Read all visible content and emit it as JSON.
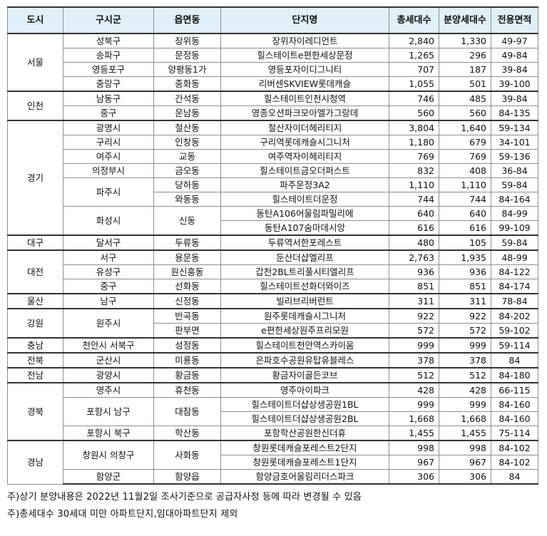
{
  "table": {
    "headers": [
      "도시",
      "구시군",
      "읍면동",
      "단지명",
      "총세대수",
      "분양세대수",
      "전용면적"
    ],
    "groups": [
      {
        "city": "서울",
        "rows": [
          [
            "성북구",
            "장위동",
            "장위자이레디언트",
            "2,840",
            "1,330",
            "49-97"
          ],
          [
            "송파구",
            "문정동",
            "힐스테이트e편한세상문정",
            "1,265",
            "296",
            "49-84"
          ],
          [
            "영등포구",
            "양평동1가",
            "영등포자이디그니티",
            "707",
            "187",
            "39-84"
          ],
          [
            "중랑구",
            "중화동",
            "리버센SKVIEW롯데캐슬",
            "1,055",
            "501",
            "39-100"
          ]
        ]
      },
      {
        "city": "인천",
        "rows": [
          [
            "남동구",
            "간석동",
            "힐스테이트인천시청역",
            "746",
            "485",
            "39-84"
          ],
          [
            "중구",
            "운남동",
            "영종오션파크모아엘가그랑데",
            "560",
            "560",
            "84-135"
          ]
        ]
      },
      {
        "city": "경기",
        "rows": [
          [
            "광명시",
            "철산동",
            "철산자이더헤리티지",
            "3,804",
            "1,640",
            "59-134"
          ],
          [
            "구리시",
            "인창동",
            "구리역롯데캐슬시그니처",
            "1,180",
            "679",
            "34-101"
          ],
          [
            "여주시",
            "교동",
            "여주역자이헤리티지",
            "769",
            "769",
            "59-136"
          ],
          [
            "의정부시",
            "금오동",
            "힐스테이트금오더퍼스트",
            "832",
            "408",
            "36-84"
          ],
          [
            "파주시",
            "당하동",
            "파주운정3A2",
            "1,110",
            "1,110",
            "59-84"
          ],
          [
            "",
            "와동동",
            "힐스테이트더운정",
            "744",
            "744",
            "84-164"
          ],
          [
            "화성시",
            "신동",
            "동탄A106어울림파밀리에",
            "640",
            "640",
            "84-99"
          ],
          [
            "",
            "",
            "동탄A107숨마데시앙",
            "616",
            "616",
            "99-109"
          ]
        ]
      },
      {
        "city": "대구",
        "rows": [
          [
            "달서구",
            "두류동",
            "두류역서한포레스트",
            "480",
            "105",
            "59-84"
          ]
        ]
      },
      {
        "city": "대전",
        "rows": [
          [
            "서구",
            "용문동",
            "둔산더샵엘리프",
            "2,763",
            "1,935",
            "48-99"
          ],
          [
            "유성구",
            "원신흥동",
            "갑천2BL트리풀시티엘리프",
            "936",
            "936",
            "84-122"
          ],
          [
            "중구",
            "선화동",
            "힐스테이트선화더와이즈",
            "851",
            "851",
            "84-174"
          ]
        ]
      },
      {
        "city": "울산",
        "rows": [
          [
            "남구",
            "신정동",
            "빌리브리버런트",
            "311",
            "311",
            "78-84"
          ]
        ]
      },
      {
        "city": "강원",
        "rows": [
          [
            "원주시",
            "반곡동",
            "원주롯데캐슬시그니처",
            "922",
            "922",
            "84-202"
          ],
          [
            "",
            "판부면",
            "e편한세상원주프리모원",
            "572",
            "572",
            "59-102"
          ]
        ]
      },
      {
        "city": "충남",
        "rows": [
          [
            "천안시 서북구",
            "성정동",
            "힐스테이트천안역스카이움",
            "999",
            "999",
            "59-114"
          ]
        ]
      },
      {
        "city": "전북",
        "rows": [
          [
            "군산시",
            "미룡동",
            "은파호수공원유탑유블레스",
            "378",
            "378",
            "84"
          ]
        ]
      },
      {
        "city": "전남",
        "rows": [
          [
            "광양시",
            "황금동",
            "황금자이골든코브",
            "512",
            "512",
            "84-180"
          ]
        ]
      },
      {
        "city": "경북",
        "rows": [
          [
            "영주시",
            "휴천동",
            "영주아이파크",
            "428",
            "428",
            "66-115"
          ],
          [
            "포항시 남구",
            "대잠동",
            "힐스테이트더샵상생공원1BL",
            "999",
            "999",
            "84-160"
          ],
          [
            "",
            "",
            "힐스테이트더샵상생공원2BL",
            "1,668",
            "1,668",
            "84-160"
          ],
          [
            "포항시 북구",
            "학산동",
            "포항학산공원한신더휴",
            "1,455",
            "1,455",
            "75-114"
          ]
        ]
      },
      {
        "city": "경남",
        "rows": [
          [
            "창원시 의창구",
            "사화동",
            "창원롯데캐슬포레스트2단지",
            "998",
            "998",
            "84-102"
          ],
          [
            "",
            "",
            "창원롯데캐슬포레스트1단지",
            "967",
            "967",
            "84-102"
          ],
          [
            "함양군",
            "함양읍",
            "함양금호어울림리더스파크",
            "306",
            "306",
            "84"
          ]
        ]
      }
    ]
  },
  "notes": [
    "주)상기 분양내용은 2022년 11월2일 조사기준으로 공급자사정 등에 따라 변경될 수 있음",
    "주)총세대수 30세대 미만 아파트단지,임대아파트단지 제외"
  ]
}
